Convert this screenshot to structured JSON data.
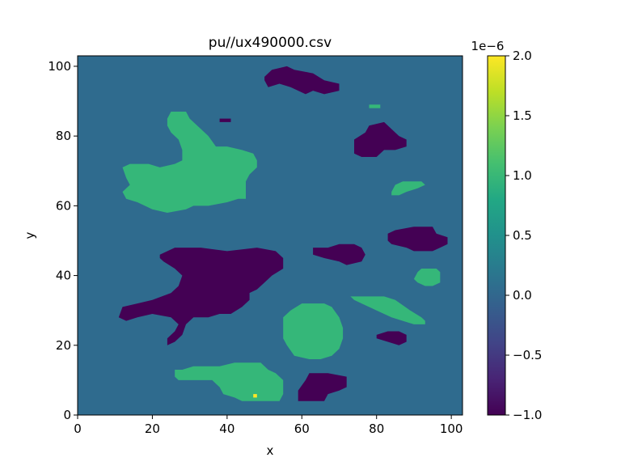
{
  "chart_data": {
    "type": "heatmap",
    "title": "pu//ux490000.csv",
    "xlabel": "x",
    "ylabel": "y",
    "xlim": [
      0,
      103
    ],
    "ylim": [
      0,
      103
    ],
    "x_ticks": [
      0,
      20,
      40,
      60,
      80,
      100
    ],
    "y_ticks": [
      0,
      20,
      40,
      60,
      80,
      100
    ],
    "x_tick_labels": [
      "0",
      "20",
      "40",
      "60",
      "80",
      "100"
    ],
    "y_tick_labels": [
      "0",
      "20",
      "40",
      "60",
      "80",
      "100"
    ],
    "colormap": "viridis",
    "colorbar": {
      "range": [
        -1.0,
        2.0
      ],
      "ticks": [
        2.0,
        1.5,
        1.0,
        0.5,
        0.0,
        -0.5,
        -1.0
      ],
      "tick_labels": [
        "2.0",
        "1.5",
        "1.0",
        "0.5",
        "0.0",
        "−0.5",
        "−1.0"
      ],
      "offset_label": "1e−6"
    },
    "background_value": 0.0,
    "regions": [
      {
        "value": -1.0,
        "polygon": [
          [
            50,
            97
          ],
          [
            52,
            99
          ],
          [
            56,
            100
          ],
          [
            58,
            99
          ],
          [
            63,
            98
          ],
          [
            66,
            96
          ],
          [
            70,
            95
          ],
          [
            70,
            93
          ],
          [
            66,
            92
          ],
          [
            63,
            93
          ],
          [
            61,
            92
          ],
          [
            57,
            94
          ],
          [
            54,
            95
          ],
          [
            51,
            94
          ],
          [
            50,
            96
          ]
        ]
      },
      {
        "value": -1.0,
        "polygon": [
          [
            38,
            85
          ],
          [
            41,
            85
          ],
          [
            41,
            84
          ],
          [
            38,
            84
          ]
        ]
      },
      {
        "value": -1.0,
        "polygon": [
          [
            74,
            79
          ],
          [
            77,
            81
          ],
          [
            78,
            83
          ],
          [
            82,
            84
          ],
          [
            84,
            82
          ],
          [
            86,
            80
          ],
          [
            88,
            79
          ],
          [
            88,
            77
          ],
          [
            85,
            76
          ],
          [
            82,
            76
          ],
          [
            80,
            74
          ],
          [
            76,
            74
          ],
          [
            74,
            75
          ]
        ]
      },
      {
        "value": -1.0,
        "polygon": [
          [
            83,
            52
          ],
          [
            85,
            53
          ],
          [
            90,
            54
          ],
          [
            95,
            54
          ],
          [
            96,
            52
          ],
          [
            99,
            51
          ],
          [
            99,
            49
          ],
          [
            97,
            48
          ],
          [
            95,
            47
          ],
          [
            90,
            47
          ],
          [
            88,
            48
          ],
          [
            84,
            49
          ],
          [
            83,
            50
          ]
        ]
      },
      {
        "value": -1.0,
        "polygon": [
          [
            63,
            48
          ],
          [
            67,
            48
          ],
          [
            70,
            49
          ],
          [
            74,
            49
          ],
          [
            76,
            48
          ],
          [
            77,
            46
          ],
          [
            76,
            44
          ],
          [
            72,
            43
          ],
          [
            70,
            44
          ],
          [
            66,
            45
          ],
          [
            63,
            46
          ]
        ]
      },
      {
        "value": -1.0,
        "polygon": [
          [
            22,
            46
          ],
          [
            26,
            48
          ],
          [
            33,
            48
          ],
          [
            40,
            47
          ],
          [
            48,
            48
          ],
          [
            53,
            47
          ],
          [
            55,
            45
          ],
          [
            55,
            42
          ],
          [
            52,
            40
          ],
          [
            50,
            38
          ],
          [
            48,
            36
          ],
          [
            46,
            35
          ],
          [
            46,
            33
          ],
          [
            44,
            31
          ],
          [
            41,
            29
          ],
          [
            38,
            29
          ],
          [
            35,
            28
          ],
          [
            31,
            28
          ],
          [
            29,
            26
          ],
          [
            28,
            23
          ],
          [
            26,
            21
          ],
          [
            24,
            20
          ],
          [
            24,
            22
          ],
          [
            26,
            24
          ],
          [
            27,
            26
          ],
          [
            25,
            28
          ],
          [
            20,
            29
          ],
          [
            16,
            28
          ],
          [
            13,
            27
          ],
          [
            11,
            28
          ],
          [
            12,
            31
          ],
          [
            16,
            32
          ],
          [
            20,
            33
          ],
          [
            25,
            35
          ],
          [
            27,
            37
          ],
          [
            28,
            40
          ],
          [
            26,
            42
          ],
          [
            23,
            44
          ],
          [
            22,
            45
          ]
        ]
      },
      {
        "value": -1.0,
        "polygon": [
          [
            80,
            23
          ],
          [
            83,
            24
          ],
          [
            86,
            24
          ],
          [
            88,
            23
          ],
          [
            88,
            21
          ],
          [
            86,
            20
          ],
          [
            83,
            21
          ],
          [
            80,
            22
          ]
        ]
      },
      {
        "value": -1.0,
        "polygon": [
          [
            59,
            7
          ],
          [
            61,
            10
          ],
          [
            62,
            12
          ],
          [
            67,
            12
          ],
          [
            72,
            11
          ],
          [
            72,
            8
          ],
          [
            70,
            7
          ],
          [
            67,
            6
          ],
          [
            66,
            4
          ],
          [
            59,
            4
          ]
        ]
      },
      {
        "value": 1.0,
        "polygon": [
          [
            24,
            85
          ],
          [
            25,
            87
          ],
          [
            29,
            87
          ],
          [
            30,
            85
          ],
          [
            32,
            83
          ],
          [
            33,
            82
          ],
          [
            35,
            80
          ],
          [
            37,
            77
          ],
          [
            40,
            77
          ],
          [
            44,
            76
          ],
          [
            47,
            75
          ],
          [
            48,
            73
          ],
          [
            48,
            71
          ],
          [
            46,
            69
          ],
          [
            45,
            67
          ],
          [
            45,
            62
          ],
          [
            43,
            62
          ],
          [
            40,
            61
          ],
          [
            35,
            60
          ],
          [
            31,
            60
          ],
          [
            29,
            59
          ],
          [
            24,
            58
          ],
          [
            20,
            59
          ],
          [
            16,
            61
          ],
          [
            13,
            62
          ],
          [
            12,
            64
          ],
          [
            14,
            66
          ],
          [
            13,
            68
          ],
          [
            12,
            71
          ],
          [
            14,
            72
          ],
          [
            19,
            72
          ],
          [
            22,
            71
          ],
          [
            26,
            72
          ],
          [
            28,
            73
          ],
          [
            28,
            76
          ],
          [
            27,
            79
          ],
          [
            25,
            81
          ],
          [
            24,
            83
          ]
        ]
      },
      {
        "value": 1.0,
        "polygon": [
          [
            78,
            89
          ],
          [
            81,
            89
          ],
          [
            81,
            88
          ],
          [
            78,
            88
          ]
        ]
      },
      {
        "value": 1.0,
        "polygon": [
          [
            84,
            64
          ],
          [
            85,
            66
          ],
          [
            87,
            67
          ],
          [
            92,
            67
          ],
          [
            93,
            66
          ],
          [
            91,
            65
          ],
          [
            88,
            64
          ],
          [
            86,
            63
          ],
          [
            84,
            63
          ]
        ]
      },
      {
        "value": 1.0,
        "polygon": [
          [
            91,
            41
          ],
          [
            92,
            42
          ],
          [
            96,
            42
          ],
          [
            97,
            41
          ],
          [
            97,
            38
          ],
          [
            95,
            37
          ],
          [
            93,
            37
          ],
          [
            91,
            38
          ],
          [
            90,
            39
          ]
        ]
      },
      {
        "value": 1.0,
        "polygon": [
          [
            73,
            34
          ],
          [
            76,
            34
          ],
          [
            82,
            34
          ],
          [
            85,
            33
          ],
          [
            89,
            30
          ],
          [
            92,
            28
          ],
          [
            93,
            27
          ],
          [
            93,
            26
          ],
          [
            90,
            26
          ],
          [
            87,
            27
          ],
          [
            84,
            28
          ],
          [
            80,
            30
          ],
          [
            76,
            32
          ],
          [
            74,
            33
          ]
        ]
      },
      {
        "value": 1.0,
        "polygon": [
          [
            55,
            28
          ],
          [
            57,
            30
          ],
          [
            60,
            32
          ],
          [
            62,
            32
          ],
          [
            66,
            32
          ],
          [
            68,
            31
          ],
          [
            70,
            28
          ],
          [
            71,
            25
          ],
          [
            71,
            22
          ],
          [
            70,
            19
          ],
          [
            68,
            17
          ],
          [
            65,
            16
          ],
          [
            62,
            16
          ],
          [
            58,
            17
          ],
          [
            56,
            20
          ],
          [
            55,
            22
          ],
          [
            55,
            25
          ]
        ]
      },
      {
        "value": 1.0,
        "polygon": [
          [
            26,
            13
          ],
          [
            28,
            13
          ],
          [
            31,
            14
          ],
          [
            38,
            14
          ],
          [
            42,
            15
          ],
          [
            49,
            15
          ],
          [
            51,
            13
          ],
          [
            53,
            12
          ],
          [
            55,
            10
          ],
          [
            55,
            6
          ],
          [
            54,
            4
          ],
          [
            52,
            4
          ],
          [
            49,
            4
          ],
          [
            44,
            4
          ],
          [
            42,
            5
          ],
          [
            39,
            6
          ],
          [
            38,
            8
          ],
          [
            37,
            9
          ],
          [
            36,
            10
          ],
          [
            33,
            10
          ],
          [
            30,
            10
          ],
          [
            27,
            10
          ],
          [
            26,
            11
          ]
        ]
      },
      {
        "value": 2.0,
        "polygon": [
          [
            47,
            6
          ],
          [
            48,
            6
          ],
          [
            48,
            5
          ],
          [
            47,
            5
          ]
        ]
      }
    ]
  },
  "colors": {
    "v_neg1": "#440154",
    "v_0": "#2f6b8e",
    "v_1": "#35b779",
    "v_2": "#fde725"
  },
  "colorbar_gradient": [
    "#440154",
    "#482475",
    "#414487",
    "#355f8d",
    "#2a788e",
    "#21918c",
    "#22a884",
    "#44bf70",
    "#7ad151",
    "#bddf26",
    "#fde725"
  ]
}
